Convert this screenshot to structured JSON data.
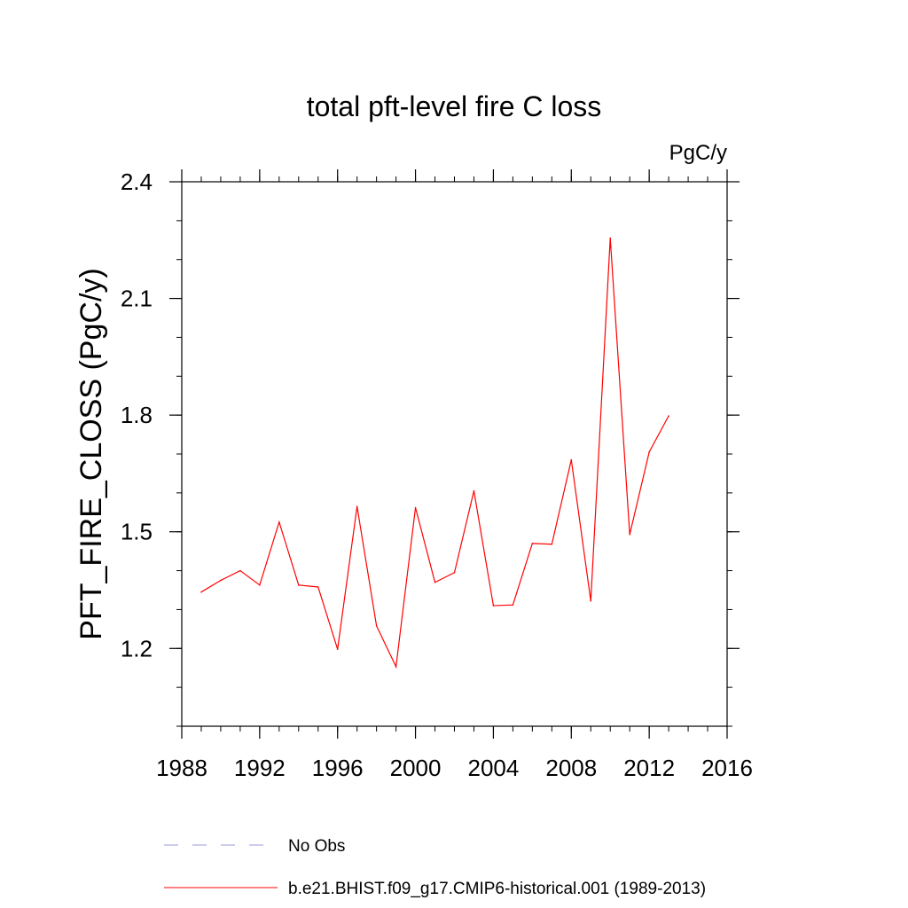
{
  "chart_data": {
    "type": "line",
    "title": "total pft-level fire C loss",
    "units": "PgC/y",
    "xlabel": "",
    "ylabel": "PFT_FIRE_CLOSS  (PgC/y)",
    "xlim": [
      1988,
      2016
    ],
    "ylim": [
      1.0,
      2.4
    ],
    "x_major_ticks": [
      1988,
      1992,
      1996,
      2000,
      2004,
      2008,
      2012,
      2016
    ],
    "x_tick_labels": [
      "1988",
      "1992",
      "1996",
      "2000",
      "2004",
      "2008",
      "2012",
      "2016"
    ],
    "x_minor_step": 1,
    "y_major_ticks": [
      1.2,
      1.5,
      1.8,
      2.1,
      2.4
    ],
    "y_tick_labels": [
      "1.2",
      "1.5",
      "1.8",
      "2.1",
      "2.4"
    ],
    "y_minor_step": 0.1,
    "grid": false,
    "legend_position": "bottom",
    "series": [
      {
        "name": "b.e21.BHIST.f09_g17.CMIP6-historical.001 (1989-2013)",
        "color": "#ff0000",
        "style": "solid",
        "x": [
          1989,
          1990,
          1991,
          1992,
          1993,
          1994,
          1995,
          1996,
          1997,
          1998,
          1999,
          2000,
          2001,
          2002,
          2003,
          2004,
          2005,
          2006,
          2007,
          2008,
          2009,
          2010,
          2011,
          2012,
          2013
        ],
        "values": [
          1.345,
          1.375,
          1.4,
          1.363,
          1.525,
          1.363,
          1.358,
          1.198,
          1.565,
          1.258,
          1.153,
          1.562,
          1.37,
          1.395,
          1.605,
          1.31,
          1.312,
          1.47,
          1.468,
          1.685,
          1.322,
          2.255,
          1.493,
          1.705,
          1.798
        ]
      }
    ],
    "legend": [
      {
        "label": "No Obs",
        "color": "#9999dd",
        "style": "dashed"
      },
      {
        "label": "b.e21.BHIST.f09_g17.CMIP6-historical.001 (1989-2013)",
        "color": "#ff0000",
        "style": "solid"
      }
    ]
  }
}
